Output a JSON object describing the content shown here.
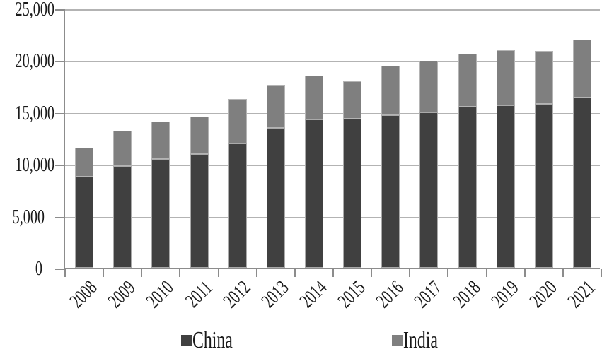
{
  "chart_data": {
    "type": "bar",
    "stacked": true,
    "title": "",
    "xlabel": "",
    "ylabel": "",
    "categories": [
      "2008",
      "2009",
      "2010",
      "2011",
      "2012",
      "2013",
      "2014",
      "2015",
      "2016",
      "2017",
      "2018",
      "2019",
      "2020",
      "2021"
    ],
    "series": [
      {
        "name": "China",
        "color": "#404040",
        "values": [
          8800,
          9800,
          10500,
          11000,
          12000,
          13500,
          14300,
          14400,
          14700,
          15000,
          15500,
          15700,
          15800,
          16400
        ]
      },
      {
        "name": "India",
        "color": "#7f7f7f",
        "values": [
          2800,
          3400,
          3600,
          3600,
          4300,
          4100,
          4200,
          3600,
          4800,
          5000,
          5100,
          5300,
          5100,
          5600
        ]
      }
    ],
    "totals": [
      11600,
      13200,
      14100,
      14600,
      16300,
      17600,
      18500,
      18000,
      19500,
      20000,
      20600,
      21000,
      20900,
      22000
    ],
    "ylim": [
      0,
      25000
    ],
    "ytick_step": 5000,
    "ytick_labels": [
      "0",
      "5,000",
      "10,000",
      "15,000",
      "20,000",
      "25,000"
    ],
    "grid": true,
    "legend_position": "bottom"
  },
  "colors": {
    "china": "#404040",
    "india": "#7f7f7f",
    "gridline": "#b3b3b3",
    "axis": "#8c8c8c",
    "text": "#1a1a1a",
    "background": "#ffffff"
  }
}
